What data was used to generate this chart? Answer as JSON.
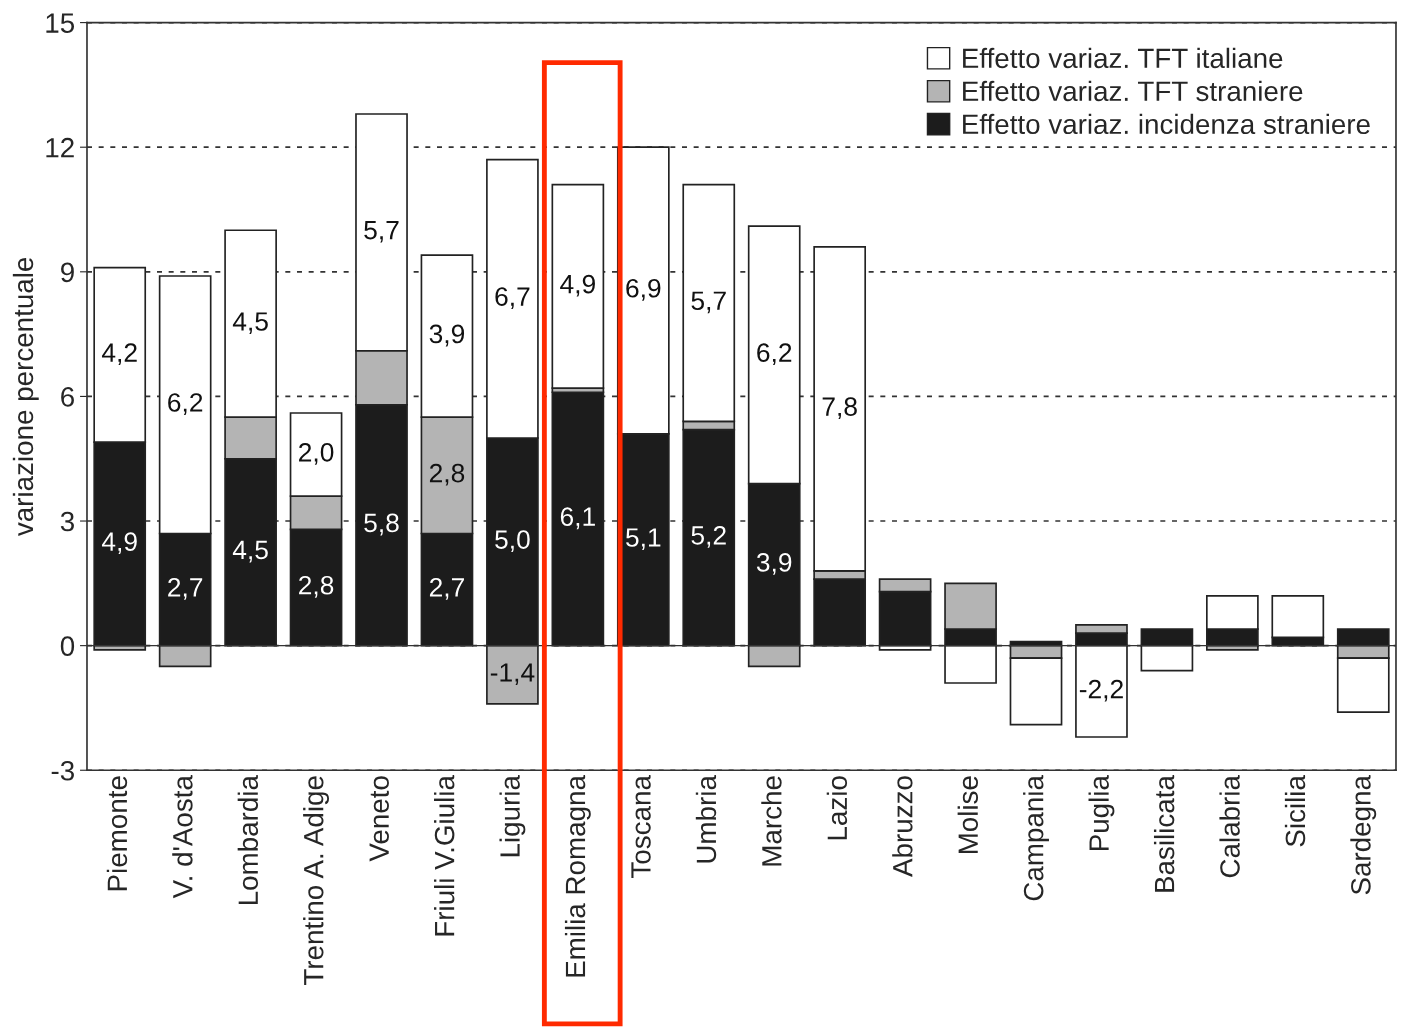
{
  "chart_data": {
    "type": "bar",
    "stacked": true,
    "ylabel": "variazione percentuale",
    "categories": [
      "Piemonte",
      "V. d'Aosta",
      "Lombardia",
      "Trentino A. Adige",
      "Veneto",
      "Friuli V.Giulia",
      "Liguria",
      "Emilia Romagna",
      "Toscana",
      "Umbria",
      "Marche",
      "Lazio",
      "Abruzzo",
      "Molise",
      "Campania",
      "Puglia",
      "Basilicata",
      "Calabria",
      "Sicilia",
      "Sardegna"
    ],
    "series": [
      {
        "name": "Effetto variaz. incidenza straniere",
        "color": "#1c1c1c",
        "values": [
          4.9,
          2.7,
          4.5,
          2.8,
          5.8,
          2.7,
          5.0,
          6.1,
          5.1,
          5.2,
          3.9,
          1.6,
          1.3,
          0.4,
          0.1,
          0.3,
          0.4,
          0.4,
          0.2,
          0.4
        ],
        "value_labels": [
          "4,9",
          "2,7",
          "4,5",
          "2,8",
          "5,8",
          "2,7",
          "5,0",
          "6,1",
          "5,1",
          "5,2",
          "3,9",
          null,
          null,
          null,
          null,
          null,
          null,
          null,
          null,
          null
        ]
      },
      {
        "name": "Effetto variaz. TFT straniere",
        "color": "#b4b4b4",
        "values": [
          -0.1,
          -0.5,
          1.0,
          0.8,
          1.3,
          2.8,
          -1.4,
          0.1,
          0.0,
          0.2,
          -0.5,
          0.2,
          0.3,
          1.1,
          -0.3,
          0.2,
          0.0,
          -0.1,
          0.0,
          -0.3
        ],
        "value_labels": [
          null,
          null,
          null,
          null,
          null,
          "2,8",
          "-1,4",
          null,
          null,
          null,
          null,
          null,
          null,
          null,
          null,
          null,
          null,
          null,
          null,
          null
        ]
      },
      {
        "name": "Effetto variaz. TFT italiane",
        "color": "#ffffff",
        "values": [
          4.2,
          6.2,
          4.5,
          2.0,
          5.7,
          3.9,
          6.7,
          4.9,
          6.9,
          5.7,
          6.2,
          7.8,
          -0.1,
          -0.9,
          -1.6,
          -2.2,
          -0.6,
          0.8,
          1.0,
          -1.3
        ],
        "value_labels": [
          "4,2",
          "6,2",
          "4,5",
          "2,0",
          "5,7",
          "3,9",
          "6,7",
          "4,9",
          "6,9",
          "5,7",
          "6,2",
          "7,8",
          null,
          null,
          null,
          "-2,2",
          null,
          null,
          null,
          null
        ]
      }
    ],
    "ylim": [
      -3,
      15
    ],
    "yticks": [
      -3,
      0,
      3,
      6,
      9,
      12,
      15
    ],
    "grid": "y",
    "legend": "top right"
  }
}
